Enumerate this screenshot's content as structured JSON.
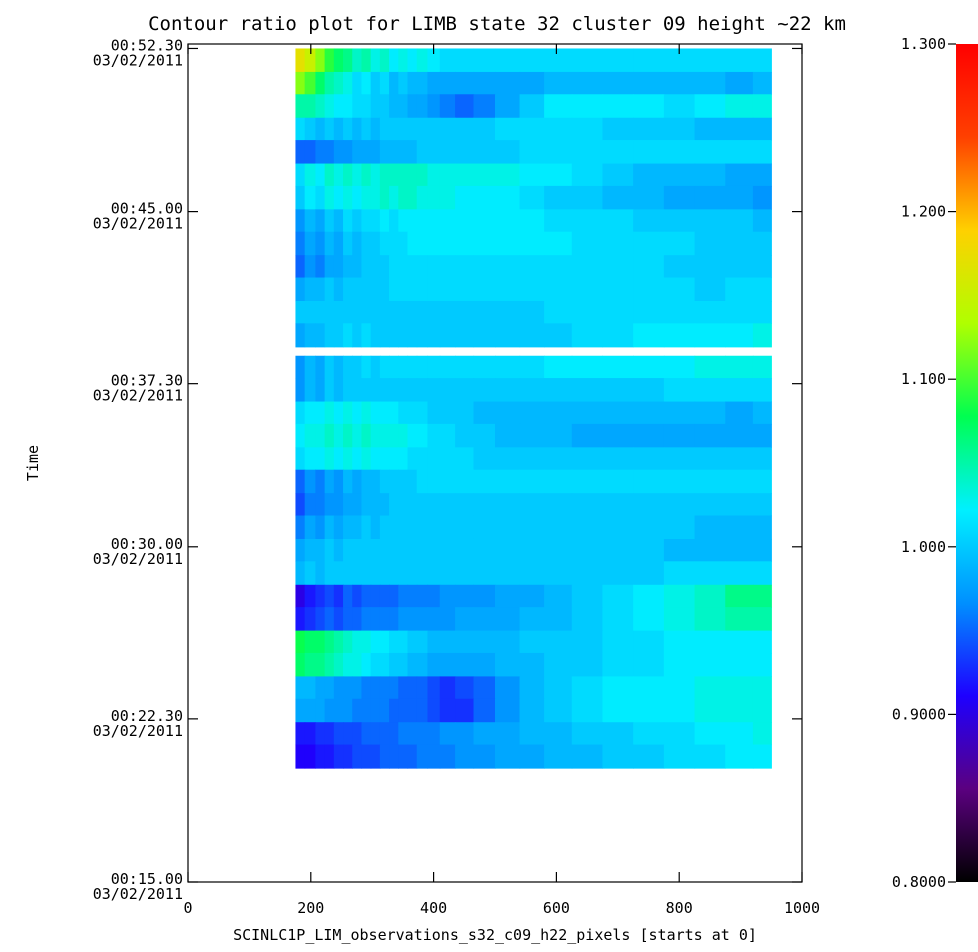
{
  "chart_data": {
    "type": "heatmap",
    "title": "Contour ratio plot for LIMB state 32 cluster 09 height ~22 km",
    "xlabel": "SCINLC1P_LIM_observations_s32_c09_h22_pixels [starts at 0]",
    "ylabel": "Time",
    "xlim": [
      0,
      1000
    ],
    "x_ticks": [
      {
        "value": 0,
        "label": "0"
      },
      {
        "value": 200,
        "label": "200"
      },
      {
        "value": 400,
        "label": "400"
      },
      {
        "value": 600,
        "label": "600"
      },
      {
        "value": 800,
        "label": "800"
      },
      {
        "value": 1000,
        "label": "1000"
      }
    ],
    "y_ticks": [
      {
        "time": "00:15.00",
        "date": "03/02/2011"
      },
      {
        "time": "00:22.30",
        "date": "03/02/2011"
      },
      {
        "time": "00:30.00",
        "date": "03/02/2011"
      },
      {
        "time": "00:37.30",
        "date": "03/02/2011"
      },
      {
        "time": "00:45.00",
        "date": "03/02/2011"
      },
      {
        "time": "00:52.30",
        "date": "03/02/2011"
      }
    ],
    "colorbar": {
      "range": [
        0.8,
        1.3
      ],
      "ticks": [
        {
          "value": 0.8,
          "label": "0.8000"
        },
        {
          "value": 0.9,
          "label": "0.9000"
        },
        {
          "value": 1.0,
          "label": "1.000"
        },
        {
          "value": 1.1,
          "label": "1.100"
        },
        {
          "value": 1.2,
          "label": "1.200"
        },
        {
          "value": 1.3,
          "label": "1.300"
        }
      ],
      "colors": [
        "#000000",
        "#5b0080",
        "#1e00ff",
        "#0090ff",
        "#00f0ff",
        "#00ff50",
        "#b0ff00",
        "#ffd000",
        "#ff4000",
        "#ff0000"
      ]
    },
    "x_range": [
      175,
      950
    ],
    "x_columns": [
      180,
      200,
      215,
      230,
      245,
      260,
      275,
      290,
      305,
      320,
      335,
      350,
      365,
      380,
      400,
      420,
      450,
      480,
      520,
      560,
      600,
      650,
      700,
      750,
      800,
      850,
      900,
      940
    ],
    "rows": [
      {
        "time": "00:52.30",
        "duration_min": 1.05,
        "values": [
          1.17,
          1.15,
          1.12,
          1.09,
          1.07,
          1.06,
          1.04,
          1.05,
          1.03,
          1.04,
          1.02,
          1.03,
          1.02,
          1.03,
          1.02,
          1.01,
          1.01,
          1.01,
          1.01,
          1.01,
          1.01,
          1.01,
          1.01,
          1.01,
          1.01,
          1.01,
          1.01,
          1.01
        ]
      },
      {
        "time": "00:51.25",
        "duration_min": 1.0,
        "values": [
          1.12,
          1.1,
          1.07,
          1.05,
          1.04,
          1.03,
          1.01,
          1.02,
          1.0,
          1.01,
          0.99,
          1.0,
          0.99,
          0.99,
          0.98,
          0.98,
          0.98,
          0.98,
          0.98,
          0.98,
          0.99,
          0.99,
          0.99,
          0.99,
          0.99,
          0.99,
          0.98,
          0.99
        ]
      },
      {
        "time": "00:50.25",
        "duration_min": 1.05,
        "values": [
          1.05,
          1.05,
          1.04,
          1.03,
          1.02,
          1.02,
          1.01,
          1.01,
          1.0,
          1.0,
          0.99,
          0.99,
          0.98,
          0.98,
          0.97,
          0.96,
          0.95,
          0.96,
          0.98,
          1.0,
          1.02,
          1.02,
          1.02,
          1.02,
          1.01,
          1.02,
          1.03,
          1.03
        ]
      },
      {
        "time": "00:49.20",
        "duration_min": 1.0,
        "values": [
          1.01,
          1.0,
          0.99,
          1.0,
          0.99,
          1.0,
          0.99,
          1.0,
          0.99,
          1.0,
          1.0,
          1.0,
          1.0,
          1.0,
          1.0,
          1.0,
          1.0,
          1.0,
          1.01,
          1.01,
          1.01,
          1.01,
          1.0,
          1.0,
          1.0,
          0.99,
          0.99,
          0.99
        ]
      },
      {
        "time": "00:48.20",
        "duration_min": 1.05,
        "values": [
          0.95,
          0.95,
          0.96,
          0.96,
          0.97,
          0.97,
          0.98,
          0.98,
          0.98,
          0.99,
          0.99,
          0.99,
          0.99,
          1.0,
          1.0,
          1.0,
          1.0,
          1.0,
          1.0,
          1.01,
          1.01,
          1.01,
          1.01,
          1.01,
          1.01,
          1.01,
          1.01,
          1.01
        ]
      },
      {
        "time": "00:47.15",
        "duration_min": 1.0,
        "values": [
          1.01,
          1.03,
          1.02,
          1.04,
          1.03,
          1.04,
          1.03,
          1.04,
          1.03,
          1.04,
          1.04,
          1.04,
          1.04,
          1.04,
          1.03,
          1.03,
          1.03,
          1.03,
          1.03,
          1.02,
          1.02,
          1.01,
          1.0,
          0.99,
          0.99,
          0.99,
          0.98,
          0.98
        ]
      },
      {
        "time": "00:46.15",
        "duration_min": 1.05,
        "values": [
          1.0,
          1.02,
          1.01,
          1.03,
          1.02,
          1.03,
          1.02,
          1.03,
          1.03,
          1.04,
          1.03,
          1.04,
          1.04,
          1.03,
          1.03,
          1.03,
          1.02,
          1.02,
          1.02,
          1.01,
          1.0,
          1.0,
          0.99,
          0.99,
          0.98,
          0.98,
          0.98,
          0.97
        ]
      },
      {
        "time": "00:45.10",
        "duration_min": 1.0,
        "values": [
          0.97,
          0.99,
          0.98,
          1.0,
          0.99,
          1.01,
          1.0,
          1.01,
          1.01,
          1.02,
          1.01,
          1.02,
          1.02,
          1.02,
          1.02,
          1.02,
          1.02,
          1.02,
          1.02,
          1.02,
          1.01,
          1.01,
          1.01,
          1.0,
          1.0,
          1.0,
          1.0,
          0.99
        ]
      },
      {
        "time": "00:44.10",
        "duration_min": 1.05,
        "values": [
          0.96,
          0.98,
          0.97,
          0.99,
          0.98,
          1.0,
          0.99,
          1.0,
          1.0,
          1.01,
          1.01,
          1.01,
          1.02,
          1.02,
          1.02,
          1.02,
          1.02,
          1.02,
          1.02,
          1.02,
          1.02,
          1.01,
          1.01,
          1.01,
          1.01,
          1.0,
          1.0,
          1.0
        ]
      },
      {
        "time": "00:43.05",
        "duration_min": 1.0,
        "values": [
          0.95,
          0.97,
          0.96,
          0.98,
          0.98,
          0.99,
          0.99,
          1.0,
          1.0,
          1.0,
          1.01,
          1.01,
          1.01,
          1.01,
          1.01,
          1.01,
          1.01,
          1.01,
          1.01,
          1.01,
          1.01,
          1.01,
          1.01,
          1.01,
          1.0,
          1.0,
          1.0,
          1.0
        ]
      },
      {
        "time": "00:42.05",
        "duration_min": 1.05,
        "values": [
          0.98,
          0.99,
          0.99,
          1.0,
          0.99,
          1.0,
          1.0,
          1.0,
          1.0,
          1.0,
          1.01,
          1.01,
          1.01,
          1.01,
          1.01,
          1.01,
          1.01,
          1.01,
          1.01,
          1.01,
          1.01,
          1.01,
          1.01,
          1.01,
          1.01,
          1.0,
          1.01,
          1.01
        ]
      },
      {
        "time": "00:41.00",
        "duration_min": 1.0,
        "values": [
          1.0,
          1.0,
          1.0,
          1.0,
          1.0,
          1.0,
          1.0,
          1.0,
          1.0,
          1.0,
          1.0,
          1.0,
          1.0,
          1.0,
          1.0,
          1.0,
          1.0,
          1.0,
          1.0,
          1.0,
          1.01,
          1.01,
          1.01,
          1.01,
          1.01,
          1.01,
          1.01,
          1.01
        ]
      },
      {
        "time": "00:40.00",
        "duration_min": 1.05,
        "values": [
          0.98,
          0.99,
          0.99,
          1.0,
          1.0,
          1.01,
          1.0,
          1.01,
          1.0,
          1.0,
          1.0,
          1.0,
          1.0,
          1.0,
          1.0,
          1.0,
          1.0,
          1.0,
          1.0,
          1.0,
          1.0,
          1.01,
          1.01,
          1.02,
          1.02,
          1.02,
          1.02,
          1.03
        ]
      },
      {
        "time": "00:38.55",
        "duration_min": 1.0,
        "values": [
          0.97,
          0.99,
          0.98,
          1.0,
          0.99,
          1.0,
          1.0,
          1.01,
          1.0,
          1.01,
          1.01,
          1.01,
          1.01,
          1.01,
          1.01,
          1.01,
          1.01,
          1.01,
          1.01,
          1.01,
          1.02,
          1.02,
          1.02,
          1.02,
          1.02,
          1.03,
          1.03,
          1.03
        ]
      },
      {
        "time": "00:37.55",
        "duration_min": 1.05,
        "values": [
          0.97,
          0.99,
          0.98,
          1.0,
          0.99,
          1.0,
          1.0,
          1.0,
          1.0,
          1.0,
          1.0,
          1.0,
          1.0,
          1.0,
          1.0,
          1.0,
          1.0,
          1.0,
          1.0,
          1.0,
          1.0,
          1.0,
          1.0,
          1.0,
          1.01,
          1.01,
          1.01,
          1.01
        ]
      },
      {
        "time": "00:36.50",
        "duration_min": 1.0,
        "values": [
          1.01,
          1.02,
          1.02,
          1.03,
          1.02,
          1.03,
          1.02,
          1.03,
          1.02,
          1.02,
          1.02,
          1.01,
          1.01,
          1.01,
          1.0,
          1.0,
          1.0,
          0.99,
          0.99,
          0.99,
          0.99,
          0.99,
          0.99,
          0.99,
          0.99,
          0.99,
          0.98,
          0.99
        ]
      },
      {
        "time": "00:35.50",
        "duration_min": 1.05,
        "values": [
          1.02,
          1.03,
          1.03,
          1.04,
          1.03,
          1.04,
          1.03,
          1.04,
          1.03,
          1.03,
          1.03,
          1.03,
          1.02,
          1.02,
          1.01,
          1.01,
          1.0,
          1.0,
          0.99,
          0.99,
          0.99,
          0.98,
          0.98,
          0.98,
          0.98,
          0.98,
          0.98,
          0.98
        ]
      },
      {
        "time": "00:34.45",
        "duration_min": 1.0,
        "values": [
          1.01,
          1.02,
          1.02,
          1.03,
          1.02,
          1.03,
          1.02,
          1.03,
          1.02,
          1.02,
          1.02,
          1.02,
          1.01,
          1.01,
          1.01,
          1.01,
          1.01,
          1.0,
          1.0,
          1.0,
          1.0,
          1.0,
          1.0,
          1.0,
          1.0,
          1.0,
          1.0,
          1.0
        ]
      },
      {
        "time": "00:33.45",
        "duration_min": 1.05,
        "values": [
          0.95,
          0.97,
          0.96,
          0.98,
          0.97,
          0.99,
          0.98,
          0.99,
          0.99,
          1.0,
          1.0,
          1.0,
          1.0,
          1.01,
          1.01,
          1.01,
          1.01,
          1.01,
          1.01,
          1.01,
          1.01,
          1.01,
          1.01,
          1.01,
          1.01,
          1.01,
          1.01,
          1.01
        ]
      },
      {
        "time": "00:32.40",
        "duration_min": 1.0,
        "values": [
          0.94,
          0.96,
          0.96,
          0.97,
          0.97,
          0.98,
          0.98,
          0.99,
          0.99,
          0.99,
          1.0,
          1.0,
          1.0,
          1.0,
          1.0,
          1.0,
          1.0,
          1.0,
          1.0,
          1.0,
          1.0,
          1.0,
          1.0,
          1.0,
          1.0,
          1.0,
          1.0,
          1.0
        ]
      },
      {
        "time": "00:31.40",
        "duration_min": 1.05,
        "values": [
          0.96,
          0.98,
          0.97,
          0.99,
          0.98,
          0.99,
          0.99,
          1.0,
          0.99,
          1.0,
          1.0,
          1.0,
          1.0,
          1.0,
          1.0,
          1.0,
          1.0,
          1.0,
          1.0,
          1.0,
          1.0,
          1.0,
          1.0,
          1.0,
          1.0,
          0.99,
          0.99,
          0.99
        ]
      },
      {
        "time": "00:30.35",
        "duration_min": 1.0,
        "values": [
          0.98,
          0.99,
          0.99,
          1.0,
          0.99,
          1.0,
          1.0,
          1.0,
          1.0,
          1.0,
          1.0,
          1.0,
          1.0,
          1.0,
          1.0,
          1.0,
          1.0,
          1.0,
          1.0,
          1.0,
          1.0,
          1.0,
          1.0,
          1.0,
          0.99,
          0.99,
          0.99,
          0.99
        ]
      },
      {
        "time": "00:29.35",
        "duration_min": 1.05,
        "values": [
          0.99,
          1.0,
          0.99,
          1.0,
          1.0,
          1.0,
          1.0,
          1.0,
          1.0,
          1.0,
          1.0,
          1.0,
          1.0,
          1.0,
          1.0,
          1.0,
          1.0,
          1.0,
          1.0,
          1.0,
          1.0,
          1.0,
          1.0,
          1.0,
          1.01,
          1.01,
          1.01,
          1.01
        ]
      },
      {
        "time": "00:28.30",
        "duration_min": 1.0,
        "values": [
          0.9,
          0.92,
          0.93,
          0.94,
          0.93,
          0.95,
          0.94,
          0.95,
          0.95,
          0.95,
          0.95,
          0.96,
          0.96,
          0.96,
          0.96,
          0.97,
          0.97,
          0.97,
          0.98,
          0.98,
          0.99,
          1.0,
          1.01,
          1.02,
          1.03,
          1.04,
          1.06,
          1.06
        ]
      },
      {
        "time": "00:27.30",
        "duration_min": 1.05,
        "values": [
          0.92,
          0.93,
          0.94,
          0.95,
          0.94,
          0.95,
          0.95,
          0.96,
          0.96,
          0.96,
          0.96,
          0.97,
          0.97,
          0.97,
          0.97,
          0.97,
          0.98,
          0.98,
          0.98,
          0.99,
          0.99,
          1.0,
          1.01,
          1.02,
          1.03,
          1.04,
          1.05,
          1.05
        ]
      },
      {
        "time": "00:26.25",
        "duration_min": 1.0,
        "values": [
          1.08,
          1.07,
          1.07,
          1.06,
          1.05,
          1.04,
          1.03,
          1.03,
          1.02,
          1.02,
          1.01,
          1.01,
          1.0,
          1.0,
          0.99,
          0.99,
          0.99,
          0.99,
          0.99,
          1.0,
          1.0,
          1.0,
          1.01,
          1.01,
          1.02,
          1.02,
          1.02,
          1.02
        ]
      },
      {
        "time": "00:25.25",
        "duration_min": 1.05,
        "values": [
          1.07,
          1.06,
          1.06,
          1.05,
          1.04,
          1.03,
          1.03,
          1.02,
          1.01,
          1.01,
          1.0,
          1.0,
          0.99,
          0.99,
          0.98,
          0.98,
          0.98,
          0.98,
          0.99,
          0.99,
          1.0,
          1.0,
          1.01,
          1.01,
          1.02,
          1.02,
          1.02,
          1.02
        ]
      },
      {
        "time": "00:24.20",
        "duration_min": 1.0,
        "values": [
          0.99,
          0.99,
          0.98,
          0.98,
          0.97,
          0.97,
          0.97,
          0.96,
          0.96,
          0.96,
          0.96,
          0.95,
          0.95,
          0.95,
          0.94,
          0.93,
          0.94,
          0.95,
          0.97,
          0.99,
          1.0,
          1.01,
          1.02,
          1.02,
          1.02,
          1.03,
          1.03,
          1.03
        ]
      },
      {
        "time": "00:23.20",
        "duration_min": 1.05,
        "values": [
          0.98,
          0.98,
          0.98,
          0.97,
          0.97,
          0.97,
          0.96,
          0.96,
          0.96,
          0.96,
          0.95,
          0.95,
          0.95,
          0.95,
          0.94,
          0.93,
          0.93,
          0.95,
          0.97,
          0.99,
          1.0,
          1.01,
          1.02,
          1.02,
          1.02,
          1.03,
          1.03,
          1.03
        ]
      },
      {
        "time": "00:22.15",
        "duration_min": 1.0,
        "values": [
          0.92,
          0.92,
          0.93,
          0.93,
          0.94,
          0.94,
          0.94,
          0.95,
          0.95,
          0.95,
          0.95,
          0.96,
          0.96,
          0.96,
          0.96,
          0.97,
          0.97,
          0.98,
          0.98,
          0.99,
          0.99,
          1.0,
          1.0,
          1.01,
          1.01,
          1.02,
          1.02,
          1.03
        ]
      },
      {
        "time": "00:21.15",
        "duration_min": 1.05,
        "values": [
          0.91,
          0.91,
          0.92,
          0.92,
          0.93,
          0.93,
          0.94,
          0.94,
          0.94,
          0.95,
          0.95,
          0.95,
          0.95,
          0.96,
          0.96,
          0.96,
          0.97,
          0.97,
          0.98,
          0.98,
          0.99,
          0.99,
          1.0,
          1.0,
          1.01,
          1.01,
          1.02,
          1.02
        ]
      }
    ]
  }
}
